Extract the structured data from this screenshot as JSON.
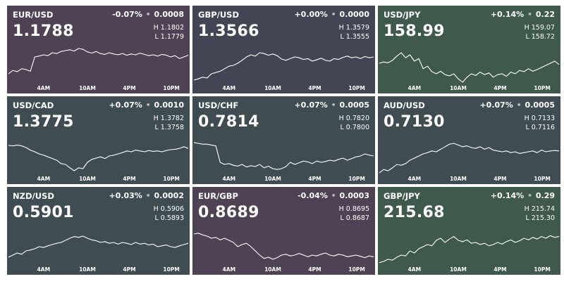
{
  "colors": {
    "purple": "#4e4254",
    "slate": "#424654",
    "green": "#3f5a4c",
    "teal": "#3f4c52",
    "line": "#ffffff"
  },
  "tiles": [
    {
      "pair": "EUR/USD",
      "change_pct": "-0.07%",
      "change_abs": "0.0008",
      "price": "1.1788",
      "high": "H 1.1802",
      "low": "L 1.1779",
      "bg": "purple",
      "series": [
        0.3,
        0.38,
        0.35,
        0.42,
        0.4,
        0.36,
        0.7,
        0.72,
        0.75,
        0.73,
        0.8,
        0.78,
        0.83,
        0.85,
        0.87,
        0.84,
        0.9,
        0.88,
        0.82,
        0.79,
        0.83,
        0.78,
        0.76,
        0.8,
        0.77,
        0.75,
        0.78,
        0.74,
        0.77,
        0.75,
        0.79,
        0.76,
        0.73,
        0.75,
        0.72,
        0.76,
        0.74,
        0.7,
        0.73,
        0.66,
        0.7,
        0.74
      ]
    },
    {
      "pair": "GBP/USD",
      "change_pct": "+0.00%",
      "change_abs": "0.0000",
      "price": "1.3566",
      "high": "H 1.3579",
      "low": "L 1.3555",
      "bg": "slate",
      "series": [
        0.15,
        0.18,
        0.22,
        0.2,
        0.3,
        0.33,
        0.36,
        0.42,
        0.48,
        0.5,
        0.55,
        0.62,
        0.7,
        0.75,
        0.72,
        0.8,
        0.78,
        0.74,
        0.77,
        0.73,
        0.65,
        0.62,
        0.66,
        0.7,
        0.68,
        0.64,
        0.66,
        0.6,
        0.63,
        0.67,
        0.62,
        0.6,
        0.66,
        0.64,
        0.69,
        0.72,
        0.68,
        0.7,
        0.66,
        0.71,
        0.68,
        0.7
      ]
    },
    {
      "pair": "USD/JPY",
      "change_pct": "+0.14%",
      "change_abs": "0.22",
      "price": "158.99",
      "high": "H 159.07",
      "low": "L 158.72",
      "bg": "green",
      "series": [
        0.55,
        0.58,
        0.56,
        0.62,
        0.72,
        0.8,
        0.68,
        0.75,
        0.6,
        0.66,
        0.42,
        0.48,
        0.35,
        0.3,
        0.36,
        0.28,
        0.25,
        0.3,
        0.18,
        0.1,
        0.22,
        0.3,
        0.26,
        0.34,
        0.28,
        0.32,
        0.22,
        0.28,
        0.3,
        0.24,
        0.34,
        0.3,
        0.38,
        0.35,
        0.42,
        0.36,
        0.4,
        0.45,
        0.5,
        0.55,
        0.6,
        0.52
      ]
    },
    {
      "pair": "USD/CAD",
      "change_pct": "+0.07%",
      "change_abs": "0.0010",
      "price": "1.3775",
      "high": "H 1.3782",
      "low": "L 1.3758",
      "bg": "teal",
      "series": [
        0.75,
        0.74,
        0.76,
        0.74,
        0.7,
        0.64,
        0.6,
        0.55,
        0.52,
        0.48,
        0.44,
        0.4,
        0.32,
        0.3,
        0.22,
        0.15,
        0.22,
        0.2,
        0.35,
        0.42,
        0.45,
        0.48,
        0.44,
        0.5,
        0.52,
        0.55,
        0.58,
        0.62,
        0.6,
        0.64,
        0.62,
        0.6,
        0.63,
        0.61,
        0.62,
        0.6,
        0.63,
        0.65,
        0.66,
        0.68,
        0.72,
        0.68
      ]
    },
    {
      "pair": "USD/CHF",
      "change_pct": "+0.07%",
      "change_abs": "0.0005",
      "price": "0.7814",
      "high": "H 0.7820",
      "low": "L 0.7800",
      "bg": "teal",
      "series": [
        0.82,
        0.8,
        0.78,
        0.78,
        0.76,
        0.74,
        0.35,
        0.3,
        0.32,
        0.28,
        0.26,
        0.3,
        0.24,
        0.27,
        0.25,
        0.3,
        0.22,
        0.26,
        0.2,
        0.18,
        0.2,
        0.25,
        0.35,
        0.3,
        0.34,
        0.38,
        0.36,
        0.32,
        0.38,
        0.35,
        0.37,
        0.4,
        0.38,
        0.42,
        0.45,
        0.4,
        0.44,
        0.48,
        0.5,
        0.55,
        0.52,
        0.5
      ]
    },
    {
      "pair": "AUD/USD",
      "change_pct": "+0.07%",
      "change_abs": "0.0005",
      "price": "0.7130",
      "high": "H 0.7133",
      "low": "L 0.7116",
      "bg": "teal",
      "series": [
        0.1,
        0.18,
        0.15,
        0.22,
        0.3,
        0.28,
        0.32,
        0.4,
        0.45,
        0.5,
        0.55,
        0.58,
        0.62,
        0.6,
        0.66,
        0.72,
        0.78,
        0.8,
        0.76,
        0.72,
        0.74,
        0.7,
        0.68,
        0.72,
        0.66,
        0.7,
        0.64,
        0.62,
        0.6,
        0.62,
        0.58,
        0.6,
        0.56,
        0.58,
        0.6,
        0.62,
        0.58,
        0.64,
        0.6,
        0.62,
        0.63,
        0.62
      ]
    },
    {
      "pair": "NZD/USD",
      "change_pct": "+0.03%",
      "change_abs": "0.0002",
      "price": "0.5901",
      "high": "H 0.5906",
      "low": "L 0.5893",
      "bg": "teal",
      "series": [
        0.25,
        0.3,
        0.35,
        0.32,
        0.4,
        0.42,
        0.45,
        0.5,
        0.48,
        0.52,
        0.55,
        0.58,
        0.6,
        0.65,
        0.7,
        0.74,
        0.72,
        0.75,
        0.7,
        0.66,
        0.64,
        0.6,
        0.62,
        0.58,
        0.6,
        0.56,
        0.6,
        0.58,
        0.55,
        0.6,
        0.56,
        0.58,
        0.54,
        0.56,
        0.5,
        0.52,
        0.54,
        0.5,
        0.48,
        0.52,
        0.55,
        0.58
      ]
    },
    {
      "pair": "EUR/GBP",
      "change_pct": "-0.04%",
      "change_abs": "0.0003",
      "price": "0.8689",
      "high": "H 0.8695",
      "low": "L 0.8687",
      "bg": "purple",
      "series": [
        0.8,
        0.82,
        0.78,
        0.75,
        0.7,
        0.72,
        0.66,
        0.7,
        0.65,
        0.6,
        0.5,
        0.55,
        0.58,
        0.5,
        0.4,
        0.3,
        0.22,
        0.25,
        0.2,
        0.24,
        0.3,
        0.32,
        0.28,
        0.3,
        0.34,
        0.3,
        0.26,
        0.3,
        0.28,
        0.32,
        0.35,
        0.3,
        0.28,
        0.32,
        0.3,
        0.26,
        0.28,
        0.3,
        0.27,
        0.24,
        0.28,
        0.26
      ]
    },
    {
      "pair": "GBP/JPY",
      "change_pct": "+0.14%",
      "change_abs": "0.29",
      "price": "215.68",
      "high": "H 215.74",
      "low": "L 215.30",
      "bg": "green",
      "series": [
        0.12,
        0.15,
        0.2,
        0.18,
        0.25,
        0.3,
        0.28,
        0.4,
        0.35,
        0.45,
        0.5,
        0.55,
        0.52,
        0.65,
        0.7,
        0.6,
        0.68,
        0.74,
        0.65,
        0.62,
        0.66,
        0.58,
        0.6,
        0.55,
        0.58,
        0.52,
        0.55,
        0.6,
        0.56,
        0.62,
        0.66,
        0.6,
        0.64,
        0.7,
        0.66,
        0.72,
        0.68,
        0.74,
        0.7,
        0.76,
        0.72,
        0.74
      ]
    }
  ],
  "xlabels": [
    "4AM",
    "10AM",
    "4PM",
    "10PM"
  ]
}
